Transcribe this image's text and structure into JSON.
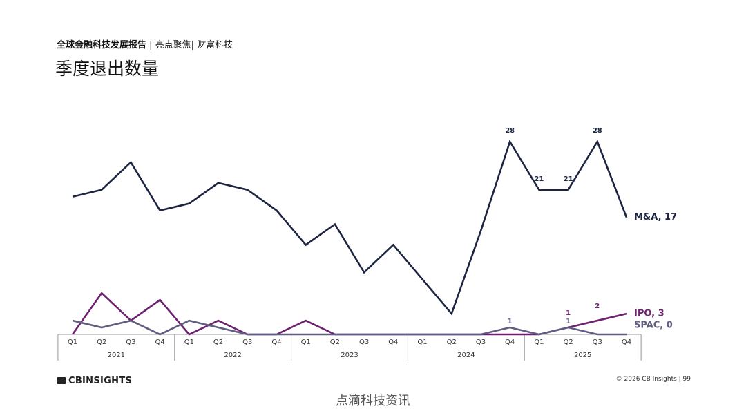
{
  "header": {
    "report": "全球金融科技发展报告",
    "section": "| 亮点聚焦| 财富科技"
  },
  "chart_data": {
    "type": "line",
    "title": "季度退出数量",
    "categories": [
      "Q1",
      "Q2",
      "Q3",
      "Q4",
      "Q1",
      "Q2",
      "Q3",
      "Q4",
      "Q1",
      "Q2",
      "Q3",
      "Q4",
      "Q1",
      "Q2",
      "Q3",
      "Q4",
      "Q1",
      "Q2",
      "Q3",
      "Q4"
    ],
    "x_groups": [
      "2021",
      "2022",
      "2023",
      "2024",
      "2025"
    ],
    "ylim": [
      0,
      28
    ],
    "series": [
      {
        "name": "M&A",
        "color": "#1c2442",
        "values": [
          20,
          21,
          25,
          18,
          19,
          22,
          21,
          18,
          13,
          16,
          9,
          13,
          8,
          3,
          15,
          28,
          21,
          21,
          28,
          17
        ],
        "value_labels": [
          null,
          null,
          null,
          null,
          null,
          null,
          null,
          null,
          null,
          null,
          null,
          null,
          null,
          null,
          null,
          "28",
          "21",
          "21",
          "28",
          "M&A, 17"
        ]
      },
      {
        "name": "IPO",
        "color": "#6e2170",
        "values": [
          0,
          6,
          2,
          5,
          0,
          2,
          0,
          0,
          2,
          0,
          0,
          0,
          0,
          0,
          0,
          0,
          0,
          1,
          2,
          3
        ],
        "value_labels": [
          null,
          null,
          null,
          null,
          null,
          null,
          null,
          null,
          null,
          null,
          null,
          null,
          null,
          null,
          null,
          null,
          null,
          "1",
          "2",
          "IPO, 3"
        ]
      },
      {
        "name": "SPAC",
        "color": "#5f5d80",
        "values": [
          2,
          1,
          2,
          0,
          2,
          1,
          0,
          0,
          0,
          0,
          0,
          0,
          0,
          0,
          0,
          1,
          0,
          1,
          0,
          0
        ],
        "value_labels": [
          null,
          null,
          null,
          null,
          null,
          null,
          null,
          null,
          null,
          null,
          null,
          null,
          null,
          null,
          null,
          "1",
          null,
          "1",
          null,
          "SPAC, 0"
        ]
      }
    ]
  },
  "footer": {
    "logo": "CBINSIGHTS",
    "credit": "© 2026 CB Insights  |  99",
    "watermark": "点滴科技资讯"
  }
}
